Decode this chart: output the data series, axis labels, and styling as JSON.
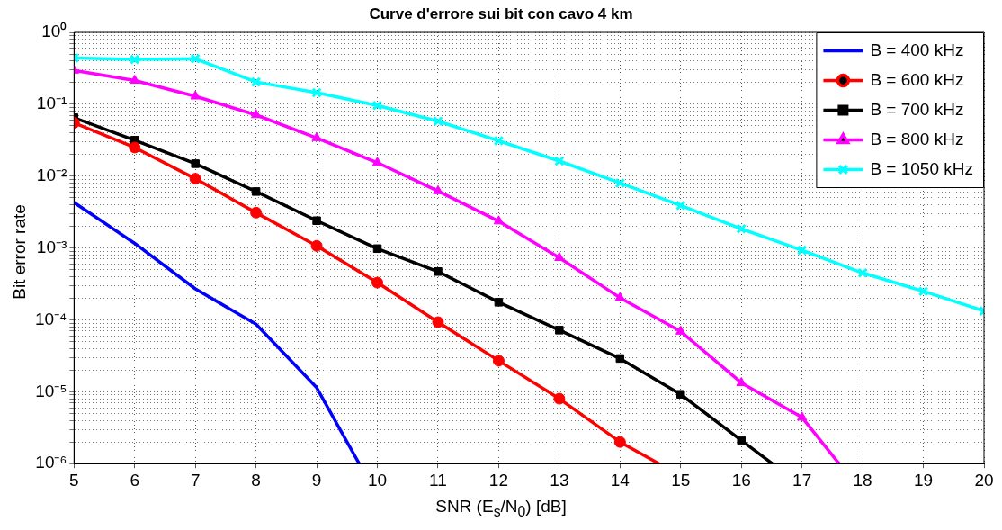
{
  "chart_data": {
    "type": "line",
    "title": "Curve d'errore sui bit con cavo 4 km",
    "xlabel": "SNR (E$_{s}$/N$_{0}$) [dB]",
    "ylabel": "Bit error rate",
    "log": "y",
    "grid": true,
    "legend": "top right",
    "line_style": "solid",
    "xlim": [
      5,
      20
    ],
    "xticks": [
      5,
      6,
      7,
      8,
      9,
      10,
      11,
      12,
      13,
      14,
      15,
      16,
      17,
      18,
      19,
      20
    ],
    "ylim": [
      1e-06,
      1
    ],
    "yticks": [
      {
        "value": 1e-06,
        "label": "10⁻⁶"
      },
      {
        "value": 2e-06,
        "label": null
      },
      {
        "value": 3e-06,
        "label": null
      },
      {
        "value": 4e-06,
        "label": null
      },
      {
        "value": 5e-06,
        "label": null
      },
      {
        "value": 6e-06,
        "label": null
      },
      {
        "value": 7e-06,
        "label": null
      },
      {
        "value": 8e-06,
        "label": null
      },
      {
        "value": 9e-06,
        "label": null
      },
      {
        "value": 1e-05,
        "label": "10⁻⁵"
      },
      {
        "value": 2e-05,
        "label": null
      },
      {
        "value": 3e-05,
        "label": null
      },
      {
        "value": 4e-05,
        "label": null
      },
      {
        "value": 5e-05,
        "label": null
      },
      {
        "value": 6e-05,
        "label": null
      },
      {
        "value": 7e-05,
        "label": null
      },
      {
        "value": 8e-05,
        "label": null
      },
      {
        "value": 9e-05,
        "label": null
      },
      {
        "value": 0.0001,
        "label": "10⁻⁴"
      },
      {
        "value": 0.0002,
        "label": null
      },
      {
        "value": 0.0003,
        "label": null
      },
      {
        "value": 0.0004,
        "label": null
      },
      {
        "value": 0.0005,
        "label": null
      },
      {
        "value": 0.0006,
        "label": null
      },
      {
        "value": 0.0007,
        "label": null
      },
      {
        "value": 0.0008,
        "label": null
      },
      {
        "value": 0.0009,
        "label": null
      },
      {
        "value": 0.001,
        "label": "10⁻³"
      },
      {
        "value": 0.002,
        "label": null
      },
      {
        "value": 0.003,
        "label": null
      },
      {
        "value": 0.004,
        "label": null
      },
      {
        "value": 0.005,
        "label": null
      },
      {
        "value": 0.006,
        "label": null
      },
      {
        "value": 0.007,
        "label": null
      },
      {
        "value": 0.008,
        "label": null
      },
      {
        "value": 0.009,
        "label": null
      },
      {
        "value": 0.01,
        "label": "10⁻²"
      },
      {
        "value": 0.02,
        "label": null
      },
      {
        "value": 0.03,
        "label": null
      },
      {
        "value": 0.04,
        "label": null
      },
      {
        "value": 0.05,
        "label": null
      },
      {
        "value": 0.06,
        "label": null
      },
      {
        "value": 0.07,
        "label": null
      },
      {
        "value": 0.08,
        "label": null
      },
      {
        "value": 0.09,
        "label": null
      },
      {
        "value": 0.1,
        "label": "10⁻¹"
      },
      {
        "value": 0.2,
        "label": null
      },
      {
        "value": 0.3,
        "label": null
      },
      {
        "value": 0.4,
        "label": null
      },
      {
        "value": 0.5,
        "label": null
      },
      {
        "value": 0.6,
        "label": null
      },
      {
        "value": 0.7,
        "label": null
      },
      {
        "value": 0.8,
        "label": null
      },
      {
        "value": 0.9,
        "label": null
      },
      {
        "value": 1,
        "label": "10⁰"
      }
    ],
    "series": [
      {
        "name": "B = 400 kHz",
        "color": "#0000ff",
        "marker": "none",
        "x": [
          5,
          6,
          7,
          8,
          9,
          9.7
        ],
        "values": [
          0.0043,
          0.00116,
          0.00027,
          8.7e-05,
          1.14e-05,
          1e-06
        ]
      },
      {
        "name": "B = 600 kHz",
        "color": "#ff0000",
        "marker": "circle",
        "x": [
          5,
          6,
          7,
          8,
          9,
          10,
          11,
          12,
          13,
          14,
          14.64
        ],
        "values": [
          0.055,
          0.025,
          0.0092,
          0.0031,
          0.00107,
          0.00033,
          9.3e-05,
          2.7e-05,
          8e-06,
          2e-06,
          1e-06
        ]
      },
      {
        "name": "B = 700 kHz",
        "color": "#000000",
        "marker": "square",
        "x": [
          5,
          6,
          7,
          8,
          9,
          10,
          11,
          12,
          13,
          14,
          15,
          16,
          16.51
        ],
        "values": [
          0.065,
          0.0316,
          0.0149,
          0.0061,
          0.0024,
          0.00098,
          0.00047,
          0.000176,
          7.2e-05,
          2.9e-05,
          9.2e-06,
          2.1e-06,
          1e-06
        ]
      },
      {
        "name": "B = 800 kHz",
        "color": "#ff00ff",
        "marker": "triangle",
        "x": [
          5,
          6,
          7,
          8,
          9,
          10,
          11,
          12,
          13,
          14,
          15,
          16,
          17,
          17.61
        ],
        "values": [
          0.295,
          0.214,
          0.129,
          0.071,
          0.034,
          0.0154,
          0.0062,
          0.00236,
          0.00073,
          0.000203,
          6.9e-05,
          1.33e-05,
          4.4e-06,
          1e-06
        ]
      },
      {
        "name": "B = 1050 kHz",
        "color": "#00ffff",
        "marker": "cross",
        "x": [
          5,
          6,
          7,
          8,
          9,
          10,
          11,
          12,
          13,
          14,
          15,
          16,
          17,
          18,
          19,
          20
        ],
        "values": [
          0.44,
          0.42,
          0.43,
          0.204,
          0.145,
          0.096,
          0.058,
          0.031,
          0.0162,
          0.008,
          0.0039,
          0.00185,
          0.00093,
          0.00045,
          0.00025,
          0.000133
        ]
      }
    ]
  }
}
